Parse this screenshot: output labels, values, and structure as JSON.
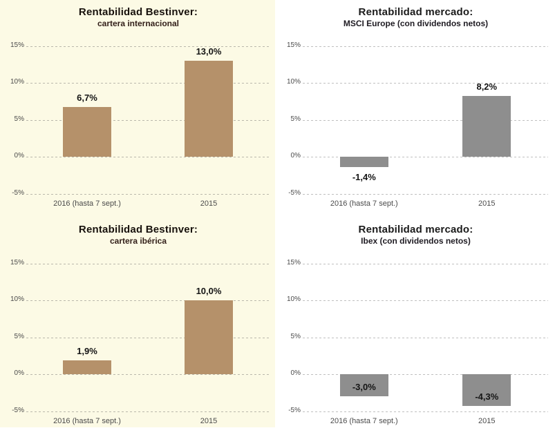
{
  "figure": {
    "layout": "2x2 grid of bar charts",
    "left_panel_background": "#fcfae5",
    "right_panel_background": "#ffffff"
  },
  "chart_data": [
    {
      "type": "bar",
      "title": "Rentabilidad Bestinver:",
      "subtitle": "cartera internacional",
      "categories": [
        "2016 (hasta 7 sept.)",
        "2015"
      ],
      "values": [
        6.7,
        13.0
      ],
      "value_labels": [
        "6,7%",
        "13,0%"
      ],
      "label_positions": [
        "above",
        "above"
      ],
      "bar_color": "#b5916a",
      "background": "#fcfae5",
      "title_color": "#17110c",
      "subtitle_color": "#33201a",
      "ylim": [
        -5,
        15
      ],
      "yticks": [
        15,
        10,
        5,
        0,
        -5
      ],
      "ytick_labels": [
        "15%",
        "10%",
        "5%",
        "0%",
        "-5%"
      ],
      "grid": true,
      "legend": false
    },
    {
      "type": "bar",
      "title": "Rentabilidad mercado:",
      "subtitle": "MSCI Europe (con dividendos netos)",
      "categories": [
        "2016 (hasta 7 sept.)",
        "2015"
      ],
      "values": [
        -1.4,
        8.2
      ],
      "value_labels": [
        "-1,4%",
        "8,2%"
      ],
      "label_positions": [
        "below",
        "above"
      ],
      "bar_color": "#8e8e8e",
      "background": "#ffffff",
      "title_color": "#1a1a1a",
      "subtitle_color": "#1e1b22",
      "ylim": [
        -5,
        15
      ],
      "yticks": [
        15,
        10,
        5,
        0,
        -5
      ],
      "ytick_labels": [
        "15%",
        "10%",
        "5%",
        "0%",
        "-5%"
      ],
      "grid": true,
      "legend": false
    },
    {
      "type": "bar",
      "title": "Rentabilidad Bestinver:",
      "subtitle": "cartera ibérica",
      "categories": [
        "2016 (hasta 7 sept.)",
        "2015"
      ],
      "values": [
        1.9,
        10.0
      ],
      "value_labels": [
        "1,9%",
        "10,0%"
      ],
      "label_positions": [
        "above",
        "above"
      ],
      "bar_color": "#b5916a",
      "background": "#fcfae5",
      "title_color": "#17110c",
      "subtitle_color": "#33201a",
      "ylim": [
        -5,
        15
      ],
      "yticks": [
        15,
        10,
        5,
        0,
        -5
      ],
      "ytick_labels": [
        "15%",
        "10%",
        "5%",
        "0%",
        "-5%"
      ],
      "grid": true,
      "legend": false
    },
    {
      "type": "bar",
      "title": "Rentabilidad mercado:",
      "subtitle": "Ibex (con dividendos netos)",
      "categories": [
        "2016 (hasta 7 sept.)",
        "2015"
      ],
      "values": [
        -3.0,
        -4.3
      ],
      "value_labels": [
        "-3,0%",
        "-4,3%"
      ],
      "label_positions": [
        "inside",
        "inside"
      ],
      "bar_color": "#8e8e8e",
      "background": "#ffffff",
      "title_color": "#1a1a1a",
      "subtitle_color": "#1e1b22",
      "ylim": [
        -5,
        15
      ],
      "yticks": [
        15,
        10,
        5,
        0,
        -5
      ],
      "ytick_labels": [
        "15%",
        "10%",
        "5%",
        "0%",
        "-5%"
      ],
      "grid": true,
      "legend": false
    }
  ]
}
